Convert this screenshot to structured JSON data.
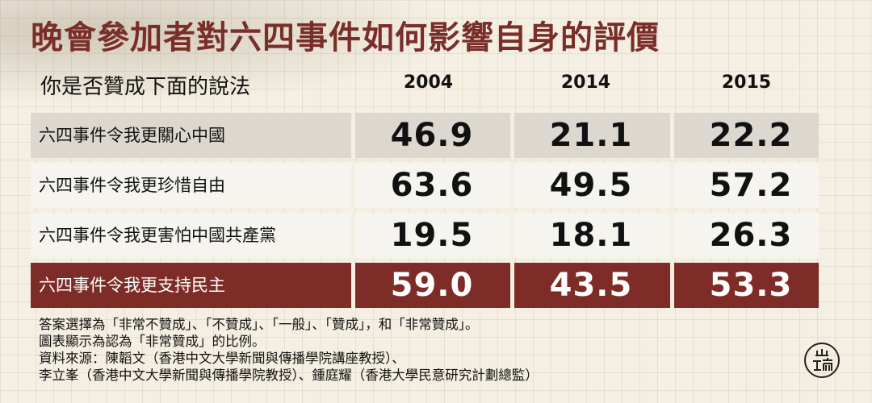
{
  "title": "晚會參加者對六四事件如何影響自身的評價",
  "chart_data": {
    "type": "table",
    "subtitle": "你是否贊成下面的說法",
    "columns": [
      "2004",
      "2014",
      "2015"
    ],
    "rows": [
      {
        "label": "六四事件令我更關心中國",
        "values": [
          "46.9",
          "21.1",
          "22.2"
        ]
      },
      {
        "label": "六四事件令我更珍惜自由",
        "values": [
          "63.6",
          "49.5",
          "57.2"
        ]
      },
      {
        "label": "六四事件令我更害怕中國共產黨",
        "values": [
          "19.5",
          "18.1",
          "26.3"
        ]
      },
      {
        "label": "六四事件令我更支持民主",
        "values": [
          "59.0",
          "43.5",
          "53.3"
        ]
      }
    ],
    "highlight_row": 3
  },
  "notes": [
    "答案選擇為「非常不贊成」、「不贊成」、「一般」、「贊成」，和「非常贊成」。",
    "圖表顯示為認為「非常贊成」的比例。",
    "資料來源：陳韜文（香港中文大學新聞與傳播學院講座教授）、",
    "李立峯（香港中文大學新聞與傳播學院教授）、鍾庭耀（香港大學民意研究計劃總監）"
  ],
  "colors": {
    "title": "#7a2e2a",
    "highlight_row_bg": "#7e2c27",
    "first_row_bg": "#dcd8cf",
    "row_bg": "#f6f4ee",
    "background": "#f4efe2"
  },
  "logo_icon": "端-logo-icon"
}
